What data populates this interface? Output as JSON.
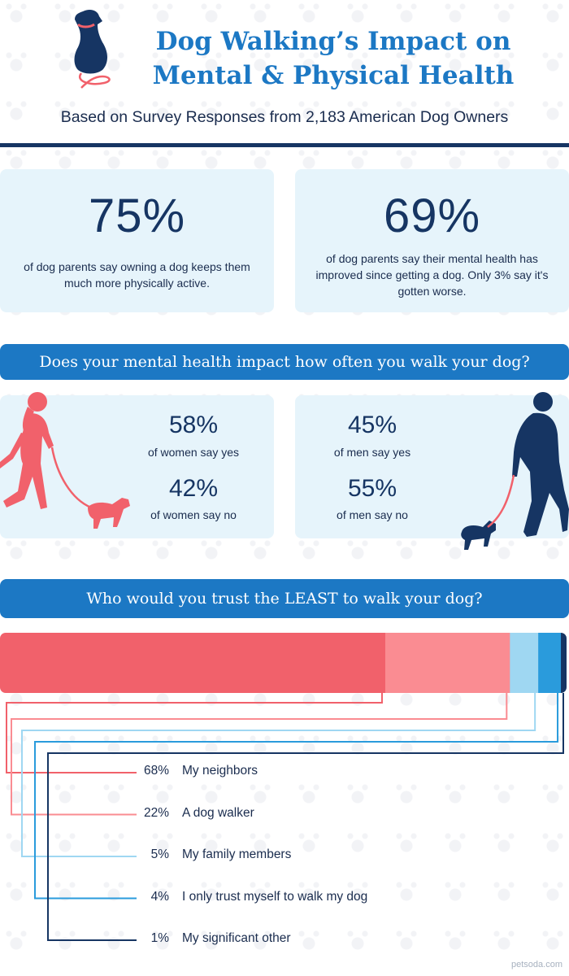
{
  "header": {
    "title_line1": "Dog Walking’s Impact on",
    "title_line2": "Mental & Physical Health",
    "subtitle": "Based on Survey Responses from 2,183 American Dog Owners"
  },
  "stats": [
    {
      "value": "75%",
      "text": "of dog parents say owning a dog keeps them much more physically active."
    },
    {
      "value": "69%",
      "text": "of dog parents say their mental health has improved since getting a dog. Only 3% say it's gotten worse."
    }
  ],
  "mental_section": {
    "question": "Does your mental health impact how often you walk your dog?",
    "women": {
      "yes_pct": "58%",
      "yes_label": "of women say yes",
      "no_pct": "42%",
      "no_label": "of women say no"
    },
    "men": {
      "yes_pct": "45%",
      "yes_label": "of men say yes",
      "no_pct": "55%",
      "no_label": "of men say no"
    }
  },
  "trust_section": {
    "question": "Who would you trust the LEAST to walk your dog?"
  },
  "watermark": "petsoda.com",
  "colors": {
    "navy": "#163563",
    "blue": "#1c78c4",
    "card_bg": "#e6f4fb",
    "coral": "#f1616b",
    "pink": "#fa8c92",
    "light_blue": "#9fd7f2",
    "mid_blue": "#2a9bdc",
    "dark_navy": "#163563"
  },
  "chart_data": {
    "type": "bar",
    "orientation": "horizontal-stacked",
    "title": "Who would you trust the LEAST to walk your dog?",
    "categories": [
      "My neighbors",
      "A dog walker",
      "My family members",
      "I only trust myself to walk my dog",
      "My significant other"
    ],
    "values": [
      68,
      22,
      5,
      4,
      1
    ],
    "labels": [
      "68%",
      "22%",
      "5%",
      "4%",
      "1%"
    ],
    "colors": [
      "#f1616b",
      "#fa8c92",
      "#9fd7f2",
      "#2a9bdc",
      "#163563"
    ]
  }
}
